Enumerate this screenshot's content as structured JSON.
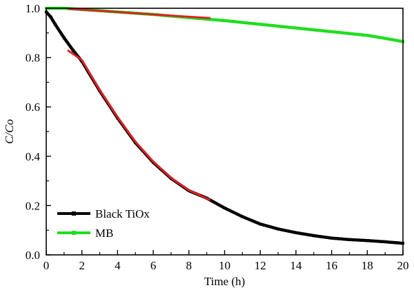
{
  "chart_data": {
    "type": "line",
    "title": "",
    "xlabel": "Time (h)",
    "ylabel": "C/Co",
    "xlim": [
      0,
      20
    ],
    "ylim": [
      0,
      1.0
    ],
    "xticks": [
      0,
      2,
      4,
      6,
      8,
      10,
      12,
      14,
      16,
      18,
      20
    ],
    "yticks": [
      0.0,
      0.2,
      0.4,
      0.6,
      0.8,
      1.0
    ],
    "xtick_labels": [
      "0",
      "2",
      "4",
      "6",
      "8",
      "10",
      "12",
      "14",
      "16",
      "18",
      "20"
    ],
    "ytick_labels": [
      "0.0",
      "0.2",
      "0.4",
      "0.6",
      "0.8",
      "1.0"
    ],
    "grid": false,
    "legend_position": "bottom-left",
    "series": [
      {
        "name": "Black TiOx",
        "color": "#000000",
        "marker": "square",
        "x": [
          0,
          0.25,
          0.5,
          1,
          1.5,
          2,
          3,
          4,
          5,
          6,
          7,
          8,
          9,
          10,
          11,
          12,
          13,
          14,
          15,
          16,
          17,
          18,
          19,
          20
        ],
        "y": [
          0.985,
          0.965,
          0.935,
          0.88,
          0.83,
          0.785,
          0.665,
          0.555,
          0.455,
          0.375,
          0.31,
          0.26,
          0.23,
          0.19,
          0.155,
          0.125,
          0.105,
          0.09,
          0.078,
          0.068,
          0.062,
          0.058,
          0.053,
          0.047
        ]
      },
      {
        "name": "MB",
        "color": "#22dd22",
        "marker": "square",
        "x": [
          0,
          1,
          2,
          4,
          6,
          8,
          10,
          12,
          14,
          16,
          18,
          19,
          20
        ],
        "y": [
          1.0,
          1.0,
          0.995,
          0.985,
          0.975,
          0.962,
          0.95,
          0.935,
          0.92,
          0.905,
          0.89,
          0.878,
          0.865
        ]
      }
    ],
    "fits": [
      {
        "color": "#dd2222",
        "x": [
          1.2,
          2,
          3,
          4,
          5,
          6,
          7,
          8,
          9.2
        ],
        "y": [
          0.83,
          0.79,
          0.668,
          0.558,
          0.458,
          0.378,
          0.312,
          0.262,
          0.222
        ]
      },
      {
        "color": "#dd2222",
        "x": [
          1.2,
          3,
          5,
          7,
          9.2
        ],
        "y": [
          0.998,
          0.99,
          0.98,
          0.97,
          0.96
        ]
      }
    ]
  }
}
